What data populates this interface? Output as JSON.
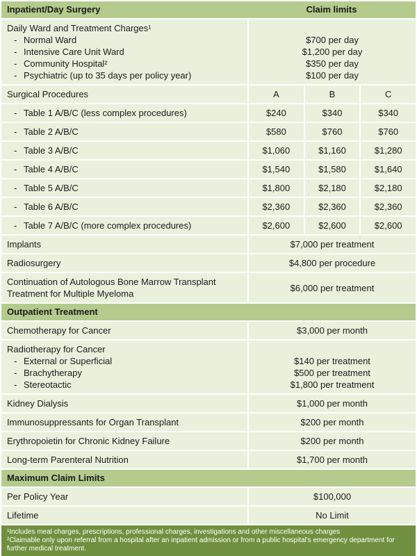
{
  "colors": {
    "header_bg": "#b5cb8d",
    "row_bg": "#e9f1dc",
    "footer_bg": "#70903f",
    "text": "#1a1a1a"
  },
  "inpatient": {
    "title": "Inpatient/Day Surgery",
    "claim_limits_label": "Claim limits",
    "daily_ward": {
      "title": "Daily Ward and Treatment Charges¹",
      "items": [
        {
          "label": "Normal Ward",
          "value": "$700 per day"
        },
        {
          "label": "Intensive Care Unit Ward",
          "value": "$1,200 per day"
        },
        {
          "label": "Community Hospital²",
          "value": "$350 per day"
        },
        {
          "label": "Psychiatric (up to 35 days per policy year)",
          "value": "$100 per day"
        }
      ]
    },
    "surgical": {
      "title": "Surgical Procedures",
      "columns": [
        "A",
        "B",
        "C"
      ],
      "rows": [
        {
          "label": "Table 1 A/B/C (less complex procedures)",
          "values": [
            "$240",
            "$340",
            "$340"
          ]
        },
        {
          "label": "Table 2 A/B/C",
          "values": [
            "$580",
            "$760",
            "$760"
          ]
        },
        {
          "label": "Table 3 A/B/C",
          "values": [
            "$1,060",
            "$1,160",
            "$1,280"
          ]
        },
        {
          "label": "Table 4 A/B/C",
          "values": [
            "$1,540",
            "$1,580",
            "$1,640"
          ]
        },
        {
          "label": "Table 5 A/B/C",
          "values": [
            "$1,800",
            "$2,180",
            "$2,180"
          ]
        },
        {
          "label": "Table 6 A/B/C",
          "values": [
            "$2,360",
            "$2,360",
            "$2,360"
          ]
        },
        {
          "label": "Table 7 A/B/C (more complex procedures)",
          "values": [
            "$2,600",
            "$2,600",
            "$2,600"
          ]
        }
      ]
    },
    "simple_rows": [
      {
        "label": "Implants",
        "value": "$7,000 per treatment"
      },
      {
        "label": "Radiosurgery",
        "value": "$4,800 per procedure"
      },
      {
        "label": "Continuation of Autologous Bone Marrow Transplant Treatment for Multiple Myeloma",
        "value": "$6,000 per treatment"
      }
    ]
  },
  "outpatient": {
    "title": "Outpatient Treatment",
    "chemo": {
      "label": "Chemotherapy for Cancer",
      "value": "$3,000 per month"
    },
    "radiotherapy": {
      "title": "Radiotherapy for Cancer",
      "items": [
        {
          "label": "External or Superficial",
          "value": "$140 per treatment"
        },
        {
          "label": "Brachytherapy",
          "value": "$500 per treatment"
        },
        {
          "label": "Stereotactic",
          "value": "$1,800 per treatment"
        }
      ]
    },
    "rows": [
      {
        "label": "Kidney Dialysis",
        "value": "$1,000 per month"
      },
      {
        "label": "Immunosuppressants for Organ Transplant",
        "value": "$200 per month"
      },
      {
        "label": "Erythropoietin for Chronic Kidney Failure",
        "value": "$200 per month"
      },
      {
        "label": "Long-term Parenteral Nutrition",
        "value": "$1,700 per month"
      }
    ]
  },
  "maximum": {
    "title": "Maximum Claim Limits",
    "rows": [
      {
        "label": "Per Policy Year",
        "value": "$100,000"
      },
      {
        "label": "Lifetime",
        "value": "No Limit"
      }
    ]
  },
  "footnotes": [
    "¹Includes meal charges, prescriptions, professional charges, investigations and other miscellaneous charges",
    "²Claimable only upon referral from a hospital after an inpatient admission or from a public hospital's emergency department for further medical treatment."
  ]
}
